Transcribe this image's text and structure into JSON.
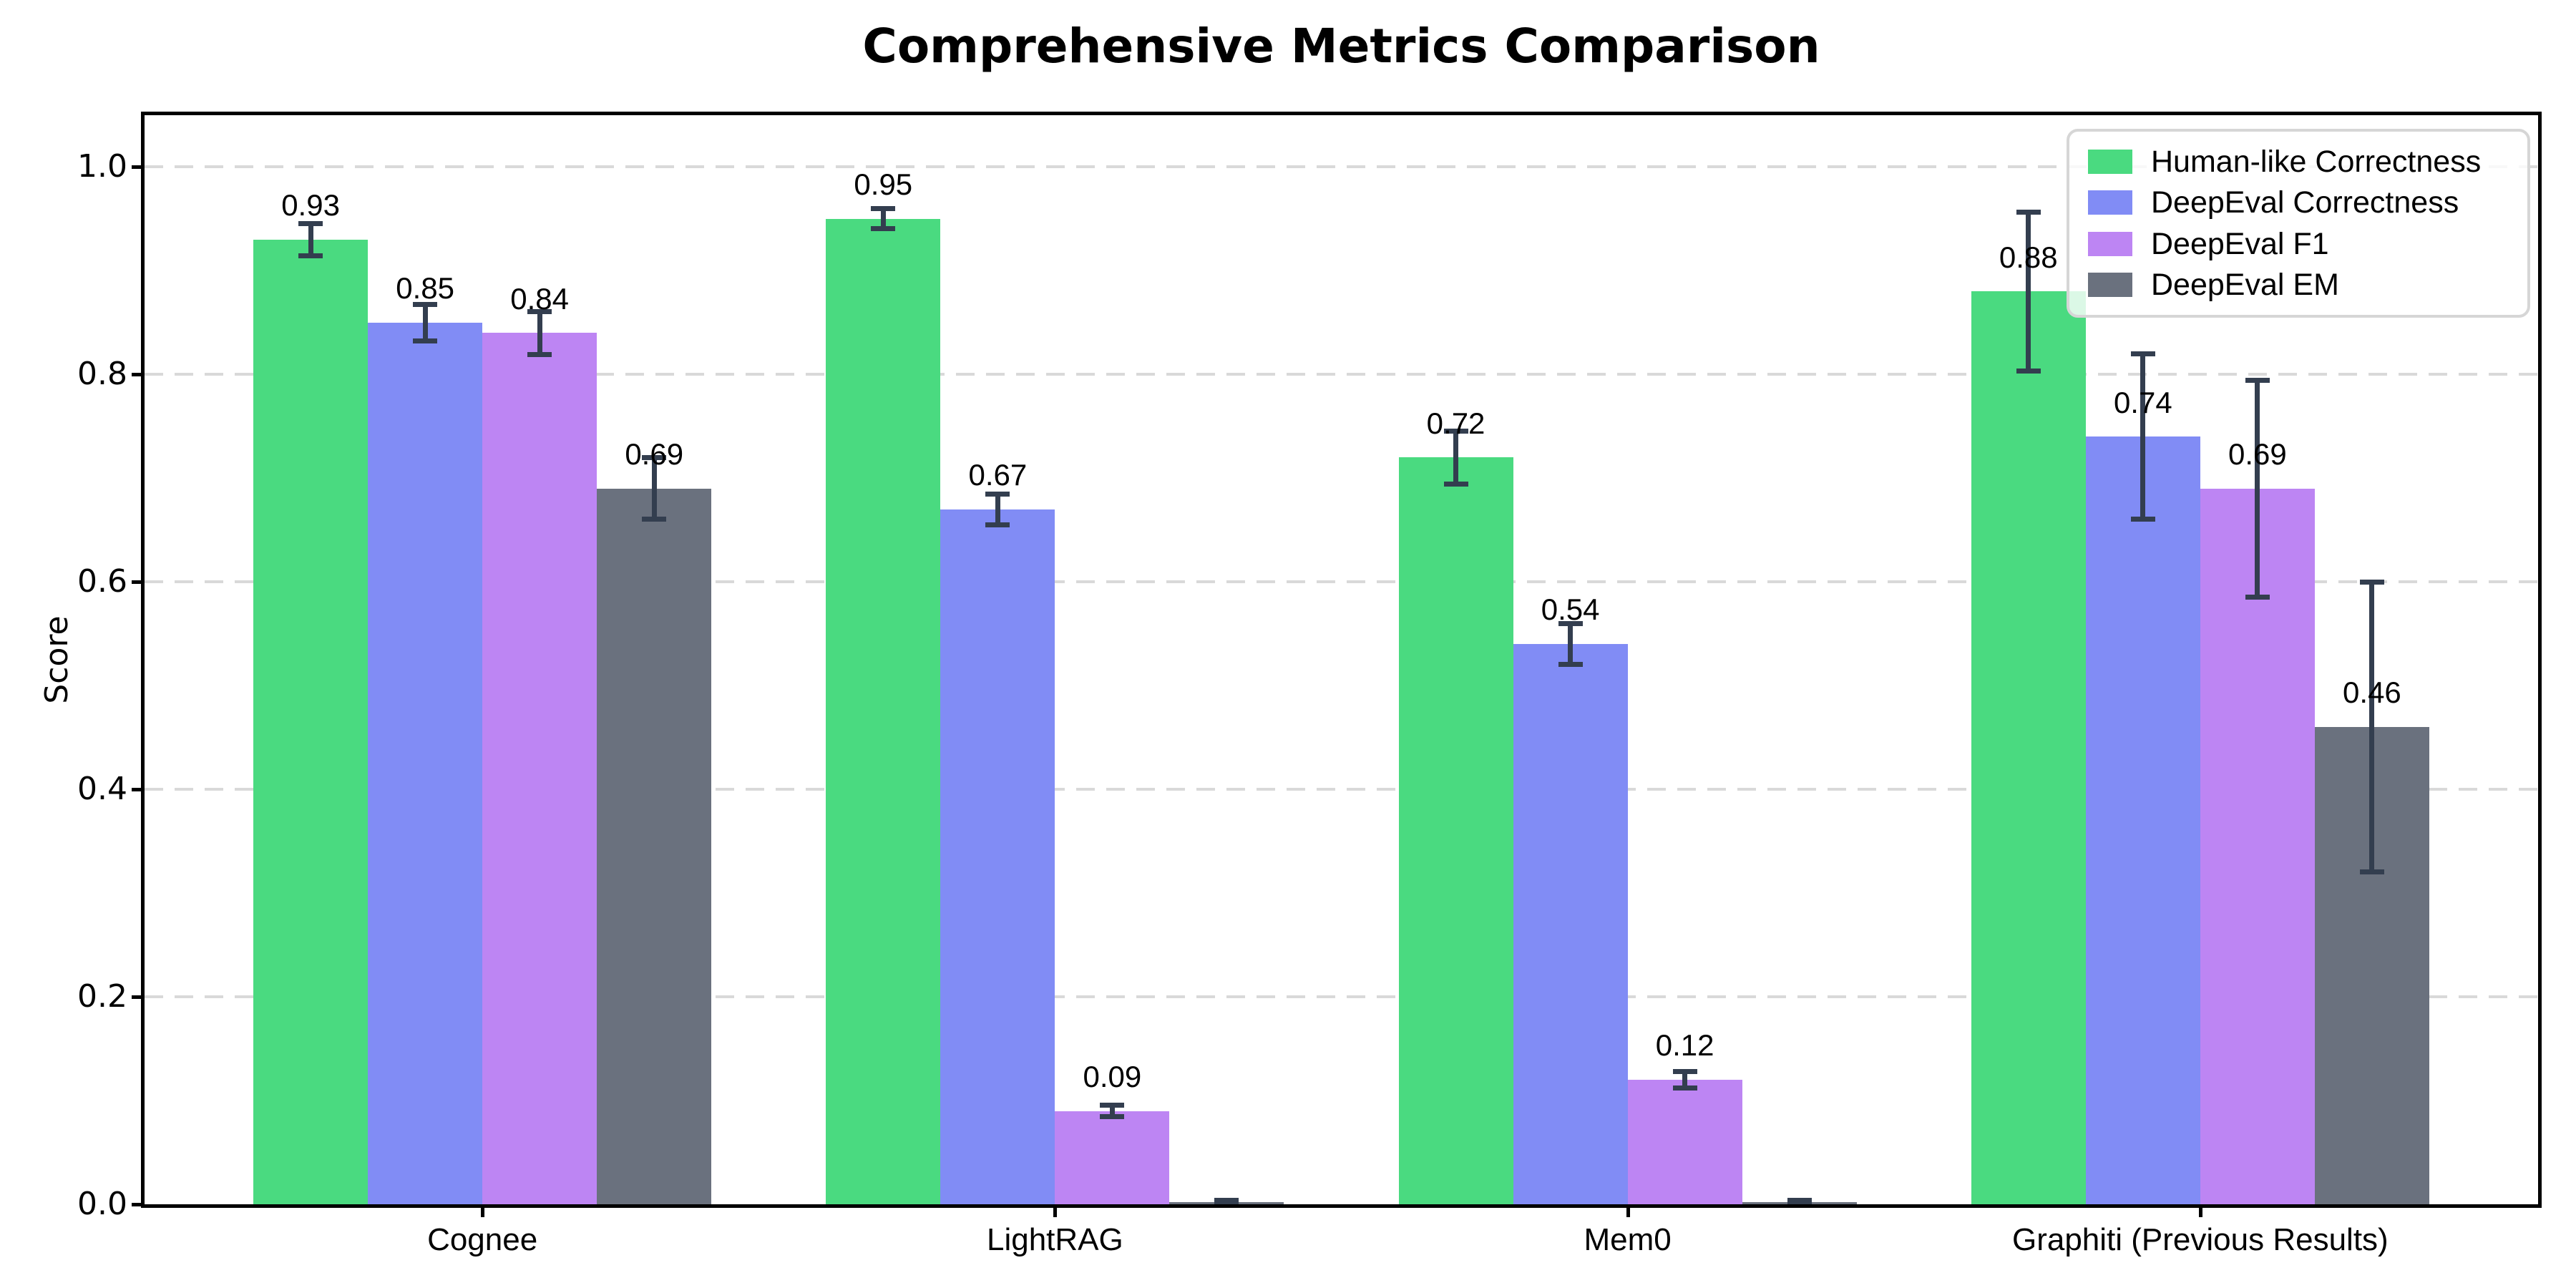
{
  "chart_data": {
    "type": "bar",
    "title": "Comprehensive Metrics Comparison",
    "ylabel": "Score",
    "xlabel": "",
    "ylim": [
      0,
      1.05
    ],
    "yticks": [
      0.0,
      0.2,
      0.4,
      0.6,
      0.8,
      1.0
    ],
    "ytick_labels": [
      "0.0",
      "0.2",
      "0.4",
      "0.6",
      "0.8",
      "1.0"
    ],
    "grid": "horizontal-dashed",
    "grid_color": "#d9d9d9",
    "legend_position": "upper-right",
    "error_bar_color": "#333e4f",
    "categories": [
      "Cognee",
      "LightRAG",
      "Mem0",
      "Graphiti (Previous Results)"
    ],
    "series": [
      {
        "name": "Human-like Correctness",
        "color": "#4ada80",
        "values": [
          0.93,
          0.95,
          0.72,
          0.88
        ],
        "errors": [
          0.016,
          0.01,
          0.026,
          0.077
        ],
        "labels": [
          "0.93",
          "0.95",
          "0.72",
          "0.88"
        ]
      },
      {
        "name": "DeepEval Correctness",
        "color": "#818cf5",
        "values": [
          0.85,
          0.67,
          0.54,
          0.74
        ],
        "errors": [
          0.018,
          0.015,
          0.02,
          0.08
        ],
        "labels": [
          "0.85",
          "0.67",
          "0.54",
          "0.74"
        ]
      },
      {
        "name": "DeepEval F1",
        "color": "#bd85f3",
        "values": [
          0.84,
          0.09,
          0.12,
          0.69
        ],
        "errors": [
          0.021,
          0.006,
          0.008,
          0.105
        ],
        "labels": [
          "0.84",
          "0.09",
          "0.12",
          "0.69"
        ]
      },
      {
        "name": "DeepEval EM",
        "color": "#6a717e",
        "values": [
          0.69,
          0.002,
          0.002,
          0.46
        ],
        "errors": [
          0.03,
          0.002,
          0.002,
          0.14
        ],
        "labels": [
          "0.69",
          "",
          "",
          "0.46"
        ]
      }
    ]
  }
}
